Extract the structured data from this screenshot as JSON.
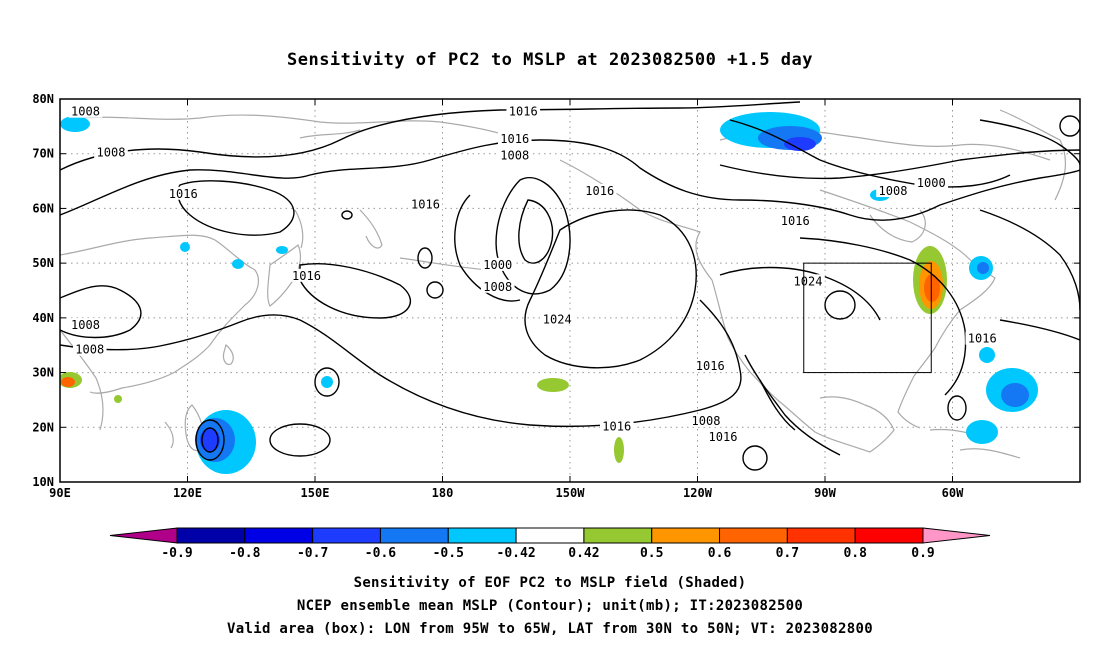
{
  "title": "Sensitivity of PC2 to MSLP at 2023082500 +1.5 day",
  "map": {
    "lat_labels": [
      "80N",
      "70N",
      "60N",
      "50N",
      "40N",
      "30N",
      "20N",
      "10N"
    ],
    "lon_labels": [
      "90E",
      "120E",
      "150E",
      "180",
      "150W",
      "120W",
      "90W",
      "60W"
    ],
    "contour_labels": [
      {
        "text": "1008",
        "lon": 96,
        "lat": 77.5
      },
      {
        "text": "1008",
        "lon": 102,
        "lat": 70
      },
      {
        "text": "1016",
        "lon": 119,
        "lat": 62.5
      },
      {
        "text": "1008",
        "lon": 96,
        "lat": 38.5
      },
      {
        "text": "1008",
        "lon": 97,
        "lat": 34
      },
      {
        "text": "1016",
        "lon": 148,
        "lat": 47.5
      },
      {
        "text": "1016",
        "lon": 176,
        "lat": 60.5
      },
      {
        "text": "1016",
        "lon": 199,
        "lat": 77.5
      },
      {
        "text": "1016",
        "lon": 197,
        "lat": 72.5
      },
      {
        "text": "1008",
        "lon": 197,
        "lat": 69.5
      },
      {
        "text": "1016",
        "lon": 217,
        "lat": 63
      },
      {
        "text": "1000",
        "lon": 193,
        "lat": 49.5
      },
      {
        "text": "1008",
        "lon": 193,
        "lat": 45.5
      },
      {
        "text": "1024",
        "lon": 207,
        "lat": 39.5
      },
      {
        "text": "1016",
        "lon": 221,
        "lat": 20
      },
      {
        "text": "1016",
        "lon": 243,
        "lat": 31
      },
      {
        "text": "1008",
        "lon": 242,
        "lat": 21
      },
      {
        "text": "1016",
        "lon": 246,
        "lat": 18
      },
      {
        "text": "1024",
        "lon": 266,
        "lat": 46.5
      },
      {
        "text": "1016",
        "lon": 263,
        "lat": 57.5
      },
      {
        "text": "1008",
        "lon": 286,
        "lat": 63
      },
      {
        "text": "1000",
        "lon": 295,
        "lat": 64.5
      },
      {
        "text": "1016",
        "lon": 307,
        "lat": 36
      }
    ],
    "valid_box": {
      "lon_min": -95,
      "lon_max": -65,
      "lat_min": 30,
      "lat_max": 50
    }
  },
  "colorbar": {
    "labels": [
      "-0.9",
      "-0.8",
      "-0.7",
      "-0.6",
      "-0.5",
      "-0.42",
      "0.42",
      "0.5",
      "0.6",
      "0.7",
      "0.8",
      "0.9"
    ],
    "colors": [
      "#b0008a",
      "#0000a8",
      "#0000e6",
      "#1e3cff",
      "#1478f5",
      "#00c8ff",
      "#ffffff",
      "#96c832",
      "#ff9600",
      "#ff6400",
      "#ff3200",
      "#ff0000",
      "#ff96c8"
    ]
  },
  "caption": {
    "line1": "Sensitivity of EOF PC2 to MSLP field (Shaded)",
    "line2": "NCEP ensemble mean MSLP (Contour); unit(mb); IT:2023082500",
    "line3": "Valid area (box): LON from 95W to 65W, LAT from 30N to 50N; VT: 2023082800"
  }
}
